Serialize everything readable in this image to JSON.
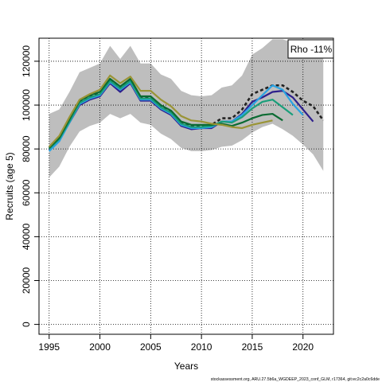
{
  "chart_data": {
    "type": "line",
    "title": "",
    "xlabel": "Years",
    "ylabel": "Recruits (age 5)",
    "xlim": [
      1994,
      2023
    ],
    "ylim": [
      -4500,
      130500
    ],
    "x_ticks": [
      1995,
      2000,
      2005,
      2010,
      2015,
      2020
    ],
    "y_ticks": [
      0,
      20000,
      40000,
      60000,
      80000,
      100000,
      120000
    ],
    "grid": true,
    "legend": {
      "text": "Rho -11%",
      "position": "top-right"
    },
    "footnote": "stockassessment.org, ARU.27.5b6a_WGDEEP_2023_conf_GLM, r17364, git:ec2c2a0c6dde",
    "band": {
      "color": "#bebebe",
      "x": [
        1995,
        1996,
        1997,
        1998,
        1999,
        2000,
        2001,
        2002,
        2003,
        2004,
        2005,
        2006,
        2007,
        2008,
        2009,
        2010,
        2011,
        2012,
        2013,
        2014,
        2015,
        2016,
        2017,
        2018,
        2019,
        2020,
        2021,
        2022
      ],
      "upper": [
        96000,
        98000,
        106000,
        115000,
        117000,
        119000,
        127000,
        121000,
        127000,
        119000,
        119000,
        114000,
        112000,
        106500,
        104500,
        104000,
        104500,
        108000,
        109000,
        113500,
        123000,
        126000,
        130000,
        130000,
        128500,
        127500,
        125500,
        123500
      ],
      "lower": [
        67000,
        72000,
        81000,
        88000,
        90500,
        92000,
        96000,
        94000,
        96000,
        92000,
        91000,
        87000,
        84500,
        80500,
        79000,
        79000,
        79500,
        81000,
        81500,
        84000,
        87500,
        90000,
        91500,
        89000,
        86000,
        82000,
        77500,
        70000
      ]
    },
    "series": [
      {
        "color": "#222222",
        "dash": "4,3",
        "width": 2.6,
        "x": [
          1995,
          1996,
          1997,
          1998,
          1999,
          2000,
          2001,
          2002,
          2003,
          2004,
          2005,
          2006,
          2007,
          2008,
          2009,
          2010,
          2011,
          2012,
          2013,
          2014,
          2015,
          2016,
          2017,
          2018,
          2019,
          2020,
          2021,
          2022
        ],
        "values": [
          80500,
          85000,
          93000,
          101500,
          104000,
          105500,
          111500,
          108000,
          111500,
          103500,
          103500,
          99500,
          97000,
          92000,
          90500,
          90500,
          91000,
          94000,
          94000,
          98000,
          105000,
          107000,
          109000,
          109000,
          106000,
          102000,
          99500,
          93000
        ]
      },
      {
        "color": "#2e1f8c",
        "dash": "",
        "width": 2.2,
        "x": [
          1995,
          1996,
          1997,
          1998,
          1999,
          2000,
          2001,
          2002,
          2003,
          2004,
          2005,
          2006,
          2007,
          2008,
          2009,
          2010,
          2011,
          2012,
          2013,
          2014,
          2015,
          2016,
          2017,
          2018,
          2019,
          2020,
          2021
        ],
        "values": [
          79500,
          84000,
          92000,
          100000,
          102500,
          104000,
          110000,
          106000,
          110000,
          102000,
          102000,
          98000,
          95500,
          90500,
          89000,
          89500,
          89500,
          92500,
          92500,
          96000,
          101500,
          103500,
          106000,
          106500,
          103500,
          98000,
          92500
        ]
      },
      {
        "color": "#29a3e3",
        "dash": "",
        "width": 2.2,
        "x": [
          1995,
          1996,
          1997,
          1998,
          1999,
          2000,
          2001,
          2002,
          2003,
          2004,
          2005,
          2006,
          2007,
          2008,
          2009,
          2010,
          2011,
          2012,
          2013,
          2014,
          2015,
          2016,
          2017,
          2018,
          2019,
          2020
        ],
        "values": [
          79000,
          83500,
          92000,
          100500,
          103000,
          104500,
          110500,
          107000,
          110500,
          102500,
          102500,
          98500,
          96000,
          91000,
          89500,
          89500,
          90000,
          92500,
          92500,
          95500,
          100000,
          104500,
          109000,
          107000,
          100500,
          95500
        ]
      },
      {
        "color": "#1a9e7a",
        "dash": "",
        "width": 2.2,
        "x": [
          1995,
          1996,
          1997,
          1998,
          1999,
          2000,
          2001,
          2002,
          2003,
          2004,
          2005,
          2006,
          2007,
          2008,
          2009,
          2010,
          2011,
          2012,
          2013,
          2014,
          2015,
          2016,
          2017,
          2018,
          2019
        ],
        "values": [
          80000,
          84500,
          92500,
          101000,
          103500,
          105000,
          111000,
          107500,
          111000,
          103000,
          103000,
          99000,
          96500,
          91500,
          90000,
          90000,
          90500,
          92500,
          92000,
          94500,
          98500,
          101500,
          102500,
          99000,
          95500
        ]
      },
      {
        "color": "#0b6b33",
        "dash": "",
        "width": 2.2,
        "x": [
          1995,
          1996,
          1997,
          1998,
          1999,
          2000,
          2001,
          2002,
          2003,
          2004,
          2005,
          2006,
          2007,
          2008,
          2009,
          2010,
          2011,
          2012,
          2013,
          2014,
          2015,
          2016,
          2017,
          2018
        ],
        "values": [
          80500,
          85000,
          93500,
          102000,
          104500,
          106000,
          112000,
          108500,
          112000,
          104000,
          104000,
          100000,
          97500,
          92500,
          91000,
          91000,
          91000,
          91500,
          90500,
          92000,
          94000,
          95500,
          96000,
          93000
        ]
      },
      {
        "color": "#9a9436",
        "dash": "",
        "width": 2.2,
        "x": [
          1995,
          1996,
          1997,
          1998,
          1999,
          2000,
          2001,
          2002,
          2003,
          2004,
          2005,
          2006,
          2007,
          2008,
          2009,
          2010,
          2011,
          2012,
          2013,
          2014,
          2015,
          2016,
          2017
        ],
        "values": [
          81000,
          86000,
          94500,
          102500,
          105000,
          107000,
          113500,
          110000,
          113000,
          106500,
          106500,
          102500,
          99500,
          95000,
          93000,
          92500,
          91500,
          91000,
          90000,
          89500,
          91000,
          92000,
          93000
        ]
      }
    ]
  }
}
